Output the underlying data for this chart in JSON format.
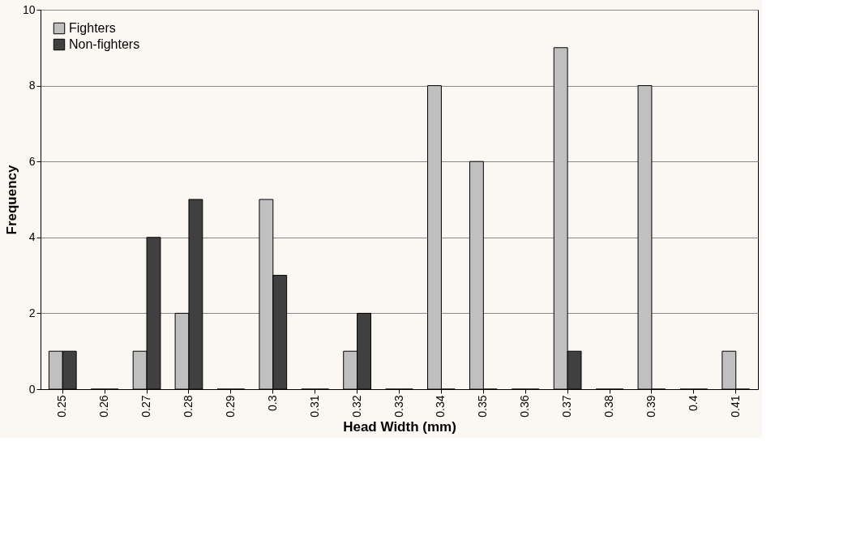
{
  "chart_data": {
    "type": "bar",
    "xlabel": "Head Width (mm)",
    "ylabel": "Frequency",
    "categories": [
      "0.25",
      "0.26",
      "0.27",
      "0.28",
      "0.29",
      "0.3",
      "0.31",
      "0.32",
      "0.33",
      "0.34",
      "0.35",
      "0.36",
      "0.37",
      "0.38",
      "0.39",
      "0.4",
      "0.41"
    ],
    "series": [
      {
        "name": "Fighters",
        "color": "#c0c0c0",
        "values": [
          1,
          0,
          1,
          2,
          0,
          5,
          0,
          1,
          0,
          8,
          6,
          0,
          9,
          0,
          8,
          0,
          1
        ]
      },
      {
        "name": "Non-fighters",
        "color": "#404040",
        "values": [
          1,
          0,
          4,
          5,
          0,
          3,
          0,
          2,
          0,
          0,
          0,
          0,
          1,
          0,
          0,
          0,
          0
        ]
      }
    ],
    "ylim": [
      0,
      10
    ],
    "yticks": [
      0,
      2,
      4,
      6,
      8,
      10
    ],
    "grid": "y",
    "legend": "top left"
  }
}
